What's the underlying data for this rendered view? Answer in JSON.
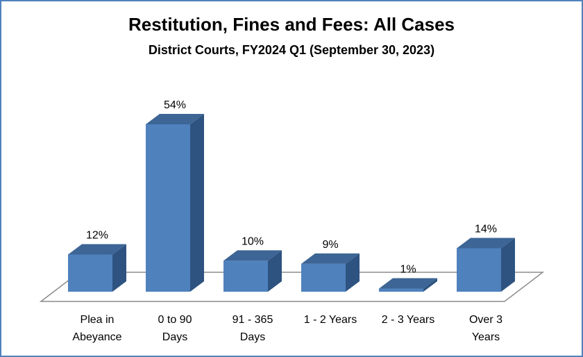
{
  "chart_data": {
    "type": "bar",
    "title": "Restitution, Fines and Fees: All Cases",
    "subtitle": "District Courts, FY2024 Q1 (September 30, 2023)",
    "categories": [
      [
        "Plea in",
        "Abeyance"
      ],
      [
        "0 to 90",
        "Days"
      ],
      [
        "91 - 365",
        "Days"
      ],
      [
        "1 - 2 Years"
      ],
      [
        "2 - 3 Years"
      ],
      [
        "Over 3",
        "Years"
      ]
    ],
    "values": [
      12,
      54,
      10,
      9,
      1,
      14
    ],
    "data_labels": [
      "12%",
      "54%",
      "10%",
      "9%",
      "1%",
      "14%"
    ],
    "ylim": [
      0,
      60
    ],
    "grid": false,
    "legend": "none",
    "colors": {
      "front": "#4f81bd",
      "side": "#2e5380",
      "top": "#3d6595",
      "border": "#4f81bd",
      "floor": "#8c8c8c"
    }
  }
}
